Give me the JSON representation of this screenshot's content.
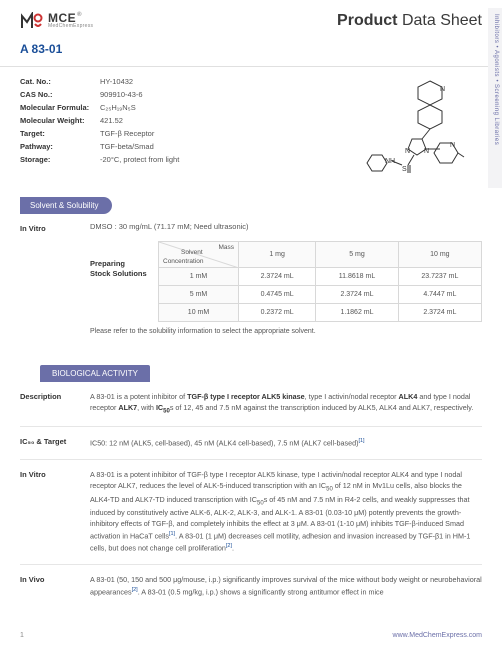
{
  "header": {
    "logo_main": "MCE",
    "logo_sub": "MedChemExpress",
    "title_bold": "Product",
    "title_rest": " Data Sheet"
  },
  "side_tab": {
    "items": [
      "Inhibitors",
      "Agonists",
      "Screening Libraries"
    ],
    "text_color": "#6b6fa8",
    "bg_color": "#f3f3f5"
  },
  "product_name": "A 83-01",
  "info": [
    {
      "label": "Cat. No.:",
      "value": "HY-10432"
    },
    {
      "label": "CAS No.:",
      "value": "909910-43-6"
    },
    {
      "label": "Molecular Formula:",
      "value": "C₂₅H₁₉N₅S"
    },
    {
      "label": "Molecular Weight:",
      "value": "421.52"
    },
    {
      "label": "Target:",
      "value": "TGF-β Receptor"
    },
    {
      "label": "Pathway:",
      "value": "TGF-beta/Smad"
    },
    {
      "label": "Storage:",
      "value": "-20°C, protect from light"
    }
  ],
  "solvent_section": {
    "pill": "Solvent & Solubility",
    "label": "In Vitro",
    "dmso": "DMSO : 30 mg/mL (71.17 mM; Need ultrasonic)",
    "stock_label_1": "Preparing",
    "stock_label_2": "Stock Solutions",
    "diag_mass": "Mass",
    "diag_conc": "Concentration",
    "diag_solvent": "Solvent",
    "headers": [
      "1 mg",
      "5 mg",
      "10 mg"
    ],
    "rows": [
      {
        "conc": "1 mM",
        "vals": [
          "2.3724 mL",
          "11.8618 mL",
          "23.7237 mL"
        ]
      },
      {
        "conc": "5 mM",
        "vals": [
          "0.4745 mL",
          "2.3724 mL",
          "4.7447 mL"
        ]
      },
      {
        "conc": "10 mM",
        "vals": [
          "0.2372 mL",
          "1.1862 mL",
          "2.3724 mL"
        ]
      }
    ],
    "note": "Please refer to the solubility information to select the appropriate solvent."
  },
  "bio_section": {
    "pill": "BIOLOGICAL ACTIVITY",
    "rows": [
      {
        "label": "Description",
        "html": "A 83-01 is a potent inhibitor of <b>TGF-β type I receptor ALK5 kinase</b>, type I activin/nodal receptor <b>ALK4</b> and type I nodal receptor <b>ALK7</b>, with <b>IC<sub>50</sub></b>s of 12, 45 and 7.5 nM against the transcription induced by ALK5, ALK4 and ALK7, respectively."
      },
      {
        "label": "IC₅₀ & Target",
        "html": "IC50: 12 nM (ALK5, cell-based), 45 nM (ALK4 cell-based), 7.5 nM (ALK7 cell-based)<span class='sup-ref'>[1]</span>"
      },
      {
        "label": "In Vitro",
        "html": "A 83-01 is a potent inhibitor of TGF-β type I receptor ALK5 kinase, type I activin/nodal receptor ALK4 and type I nodal receptor ALK7, reduces the level of ALK-5-induced transcription with an IC<sub>50</sub> of 12 nM in Mv1Lu cells, also blocks the ALK4-TD and ALK7-TD induced transcription with IC<sub>50</sub>s of 45 nM and 7.5 nM in R4-2 cells, and weakly suppresses that induced by constitutively active ALK-6, ALK-2, ALK-3, and ALK-1. A 83-01 (0.03-10 μM) potently prevents the growth-inhibitory effects of TGF-β, and completely inhibits the effect at 3 μM. A 83-01 (1-10 μM) inhibits TGF-β-induced Smad activation in HaCaT cells<span class='sup-ref'>[1]</span>. A 83-01 (1 μM) decreases cell motility, adhesion and invasion increased by TGF-β1 in HM-1 cells, but does not change cell proliferation<span class='sup-ref'>[2]</span>."
      },
      {
        "label": "In Vivo",
        "html": "A 83-01 (50, 150 and 500 μg/mouse, i.p.) significantly improves survival of the mice without body weight or neurobehavioral appearances<span class='sup-ref'>[2]</span>. A 83-01 (0.5 mg/kg, i.p.) shows a significantly strong antitumor effect in mice"
      }
    ]
  },
  "footer": {
    "page": "1",
    "url": "www.MedChemExpress.com"
  },
  "colors": {
    "brand_blue": "#1a4e98",
    "pill_purple": "#6b6fa8",
    "border": "#e0e0e0",
    "text_gray": "#555555"
  }
}
